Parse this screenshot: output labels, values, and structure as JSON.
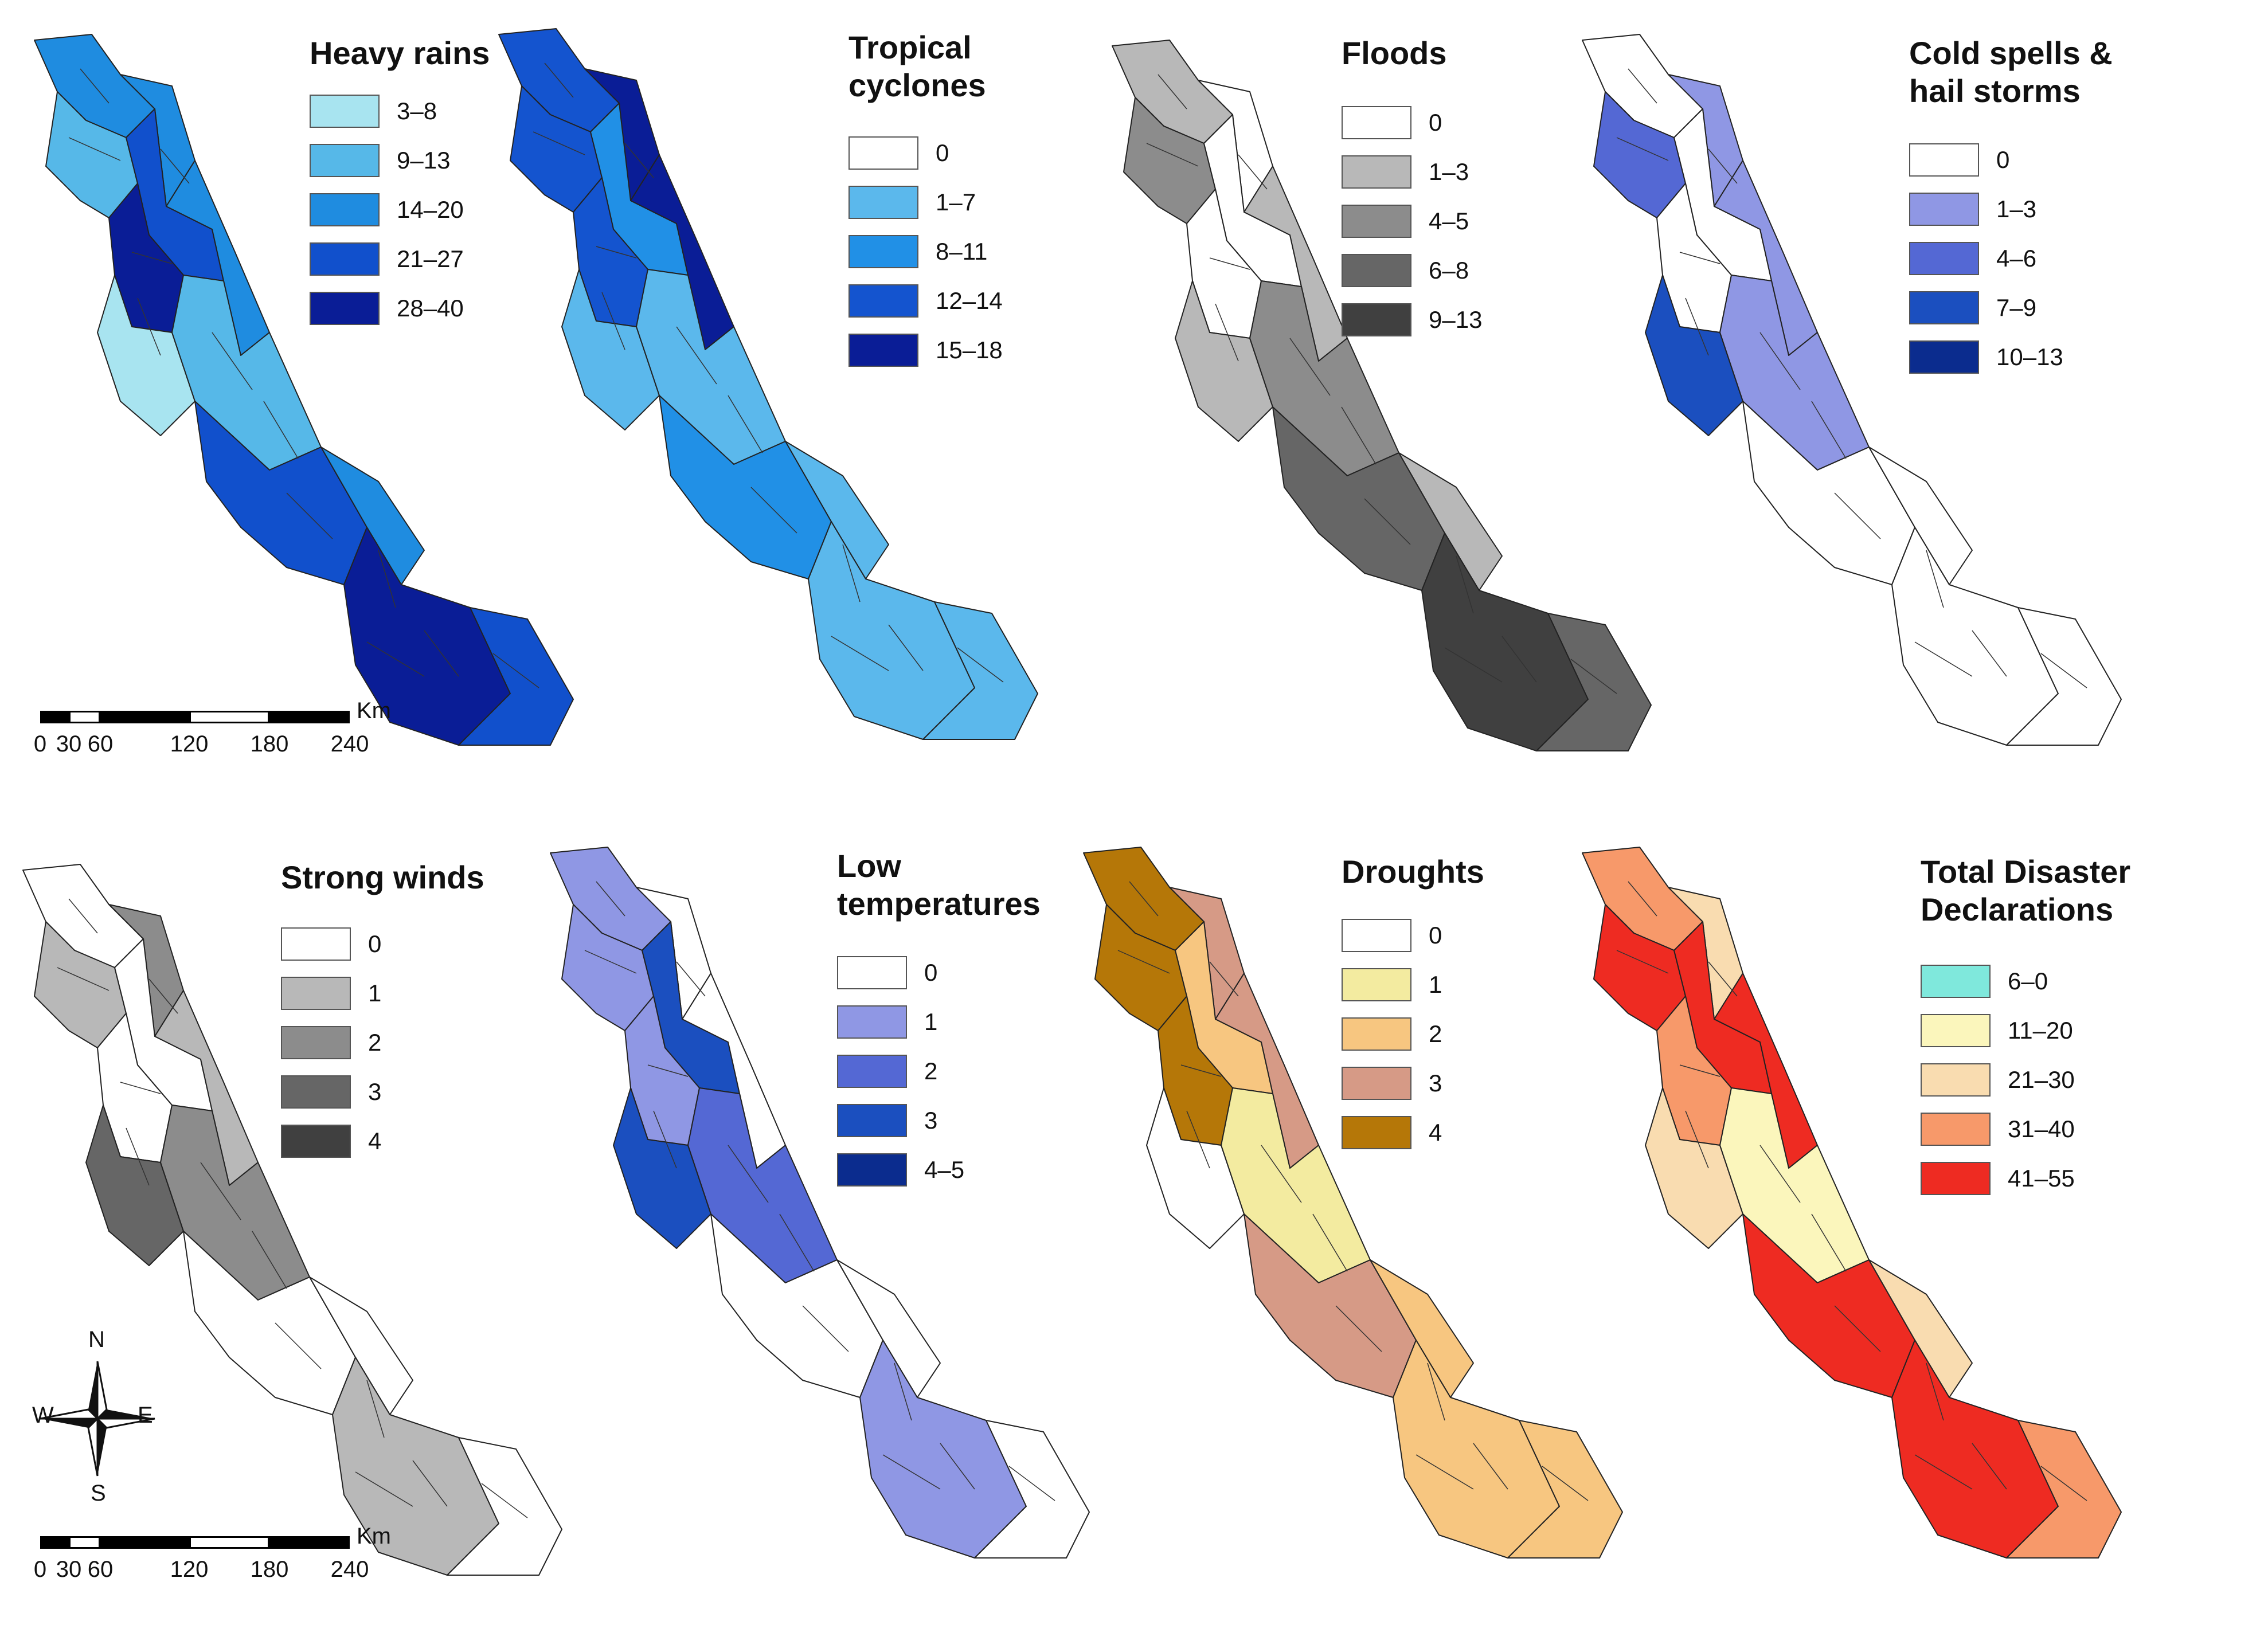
{
  "panels": [
    {
      "title_lines": [
        "Heavy rains"
      ],
      "legend": [
        {
          "label": "3–8",
          "color": "#a8e4f0"
        },
        {
          "label": "9–13",
          "color": "#56b8e8"
        },
        {
          "label": "14–20",
          "color": "#1f8ce0"
        },
        {
          "label": "21–27",
          "color": "#1150cc"
        },
        {
          "label": "28–40",
          "color": "#0a1d96"
        }
      ],
      "map_color_level": [
        2,
        2,
        1,
        3,
        2,
        4,
        0,
        1,
        3,
        2,
        4,
        3
      ]
    },
    {
      "title_lines": [
        "Tropical",
        "cyclones"
      ],
      "legend": [
        {
          "label": "0",
          "color": "#ffffff"
        },
        {
          "label": "1–7",
          "color": "#5bb8ec"
        },
        {
          "label": "8–11",
          "color": "#2190e6"
        },
        {
          "label": "12–14",
          "color": "#1454cf"
        },
        {
          "label": "15–18",
          "color": "#0a1d96"
        }
      ],
      "map_color_level": [
        3,
        4,
        3,
        2,
        4,
        3,
        1,
        1,
        2,
        1,
        1,
        1
      ]
    },
    {
      "title_lines": [
        "Floods"
      ],
      "legend": [
        {
          "label": "0",
          "color": "#ffffff"
        },
        {
          "label": "1–3",
          "color": "#b8b8b8"
        },
        {
          "label": "4–5",
          "color": "#8c8c8c"
        },
        {
          "label": "6–8",
          "color": "#666666"
        },
        {
          "label": "9–13",
          "color": "#404040"
        }
      ],
      "map_color_level": [
        1,
        0,
        2,
        0,
        1,
        0,
        1,
        2,
        3,
        1,
        4,
        3
      ]
    },
    {
      "title_lines": [
        "Cold spells &",
        "hail storms"
      ],
      "legend": [
        {
          "label": "0",
          "color": "#ffffff"
        },
        {
          "label": "1–3",
          "color": "#8f97e4"
        },
        {
          "label": "4–6",
          "color": "#5468d4"
        },
        {
          "label": "7–9",
          "color": "#1b4fbf"
        },
        {
          "label": "10–13",
          "color": "#0b2c8e"
        }
      ],
      "map_color_level": [
        0,
        1,
        2,
        0,
        1,
        0,
        3,
        1,
        0,
        0,
        0,
        0
      ]
    },
    {
      "title_lines": [
        "Strong winds"
      ],
      "legend": [
        {
          "label": "0",
          "color": "#ffffff"
        },
        {
          "label": "1",
          "color": "#b8b8b8"
        },
        {
          "label": "2",
          "color": "#8c8c8c"
        },
        {
          "label": "3",
          "color": "#666666"
        },
        {
          "label": "4",
          "color": "#404040"
        }
      ],
      "map_color_level": [
        0,
        2,
        1,
        0,
        1,
        0,
        3,
        2,
        0,
        0,
        1,
        0
      ]
    },
    {
      "title_lines": [
        "Low",
        "temperatures"
      ],
      "legend": [
        {
          "label": "0",
          "color": "#ffffff"
        },
        {
          "label": "1",
          "color": "#8f97e4"
        },
        {
          "label": "2",
          "color": "#5468d4"
        },
        {
          "label": "3",
          "color": "#1b4fbf"
        },
        {
          "label": "4–5",
          "color": "#0b2c8e"
        }
      ],
      "map_color_level": [
        1,
        0,
        1,
        3,
        0,
        1,
        3,
        2,
        0,
        0,
        1,
        0
      ]
    },
    {
      "title_lines": [
        "Droughts"
      ],
      "legend": [
        {
          "label": "0",
          "color": "#ffffff"
        },
        {
          "label": "1",
          "color": "#f3eba0"
        },
        {
          "label": "2",
          "color": "#f7c680"
        },
        {
          "label": "3",
          "color": "#d69a86"
        },
        {
          "label": "4",
          "color": "#b57708"
        }
      ],
      "map_color_level": [
        4,
        3,
        4,
        2,
        3,
        4,
        0,
        1,
        3,
        2,
        2,
        2
      ]
    },
    {
      "title_lines": [
        "Total Disaster",
        "Declarations"
      ],
      "legend": [
        {
          "label": "6–0",
          "color": "#7fe8dc"
        },
        {
          "label": "11–20",
          "color": "#fbf6bc"
        },
        {
          "label": "21–30",
          "color": "#f9dcb0"
        },
        {
          "label": "31–40",
          "color": "#f7996a"
        },
        {
          "label": "41–55",
          "color": "#ee2b22"
        }
      ],
      "map_color_level": [
        3,
        2,
        4,
        4,
        4,
        3,
        2,
        1,
        4,
        2,
        4,
        3
      ]
    }
  ],
  "scalebar": {
    "ticks": [
      "0",
      "30",
      "60",
      "120",
      "180",
      "240"
    ],
    "unit": "Km"
  },
  "compass": {
    "n": "N",
    "s": "S",
    "e": "E",
    "w": "W"
  }
}
